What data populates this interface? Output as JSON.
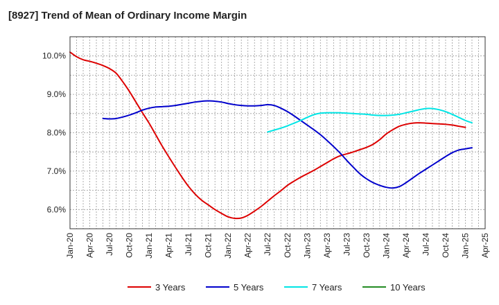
{
  "chart_data": {
    "type": "line",
    "title": "[8927]  Trend of Mean of Ordinary Income Margin",
    "xlabel": "",
    "ylabel": "",
    "x_ticks": [
      "Jan-20",
      "Apr-20",
      "Jul-20",
      "Oct-20",
      "Jan-21",
      "Apr-21",
      "Jul-21",
      "Oct-21",
      "Jan-22",
      "Apr-22",
      "Jul-22",
      "Oct-22",
      "Jan-23",
      "Apr-23",
      "Jul-23",
      "Oct-23",
      "Jan-24",
      "Apr-24",
      "Jul-24",
      "Oct-24",
      "Jan-25",
      "Apr-25"
    ],
    "y_ticks": [
      "6.0%",
      "7.0%",
      "8.0%",
      "9.0%",
      "10.0%"
    ],
    "y_tick_values": [
      6.0,
      7.0,
      8.0,
      9.0,
      10.0
    ],
    "ylim": [
      5.5,
      10.5
    ],
    "grid": true,
    "legend_position": "bottom",
    "series": [
      {
        "name": "3 Years",
        "color": "#dd0000",
        "points": [
          [
            "Jan-20",
            10.1
          ],
          [
            "Feb-20",
            9.98
          ],
          [
            "Mar-20",
            9.9
          ],
          [
            "Apr-20",
            9.86
          ],
          [
            "May-20",
            9.81
          ],
          [
            "Jun-20",
            9.75
          ],
          [
            "Jul-20",
            9.67
          ],
          [
            "Aug-20",
            9.55
          ],
          [
            "Sep-20",
            9.33
          ],
          [
            "Oct-20",
            9.08
          ],
          [
            "Nov-20",
            8.8
          ],
          [
            "Dec-20",
            8.52
          ],
          [
            "Jan-21",
            8.25
          ],
          [
            "Feb-21",
            7.95
          ],
          [
            "Mar-21",
            7.65
          ],
          [
            "Apr-21",
            7.37
          ],
          [
            "May-21",
            7.1
          ],
          [
            "Jun-21",
            6.84
          ],
          [
            "Jul-21",
            6.6
          ],
          [
            "Aug-21",
            6.4
          ],
          [
            "Sep-21",
            6.24
          ],
          [
            "Oct-21",
            6.12
          ],
          [
            "Nov-21",
            6.0
          ],
          [
            "Dec-21",
            5.9
          ],
          [
            "Jan-22",
            5.81
          ],
          [
            "Feb-22",
            5.77
          ],
          [
            "Mar-22",
            5.78
          ],
          [
            "Apr-22",
            5.85
          ],
          [
            "May-22",
            5.96
          ],
          [
            "Jun-22",
            6.08
          ],
          [
            "Jul-22",
            6.22
          ],
          [
            "Aug-22",
            6.36
          ],
          [
            "Sep-22",
            6.49
          ],
          [
            "Oct-22",
            6.63
          ],
          [
            "Nov-22",
            6.74
          ],
          [
            "Dec-22",
            6.84
          ],
          [
            "Jan-23",
            6.93
          ],
          [
            "Feb-23",
            7.02
          ],
          [
            "Mar-23",
            7.12
          ],
          [
            "Apr-23",
            7.22
          ],
          [
            "May-23",
            7.32
          ],
          [
            "Jun-23",
            7.4
          ],
          [
            "Jul-23",
            7.45
          ],
          [
            "Aug-23",
            7.5
          ],
          [
            "Sep-23",
            7.56
          ],
          [
            "Oct-23",
            7.62
          ],
          [
            "Nov-23",
            7.7
          ],
          [
            "Dec-23",
            7.82
          ],
          [
            "Jan-24",
            7.97
          ],
          [
            "Feb-24",
            8.08
          ],
          [
            "Mar-24",
            8.17
          ],
          [
            "Apr-24",
            8.22
          ],
          [
            "May-24",
            8.25
          ],
          [
            "Jun-24",
            8.26
          ],
          [
            "Jul-24",
            8.25
          ],
          [
            "Aug-24",
            8.24
          ],
          [
            "Sep-24",
            8.23
          ],
          [
            "Oct-24",
            8.22
          ],
          [
            "Nov-24",
            8.2
          ],
          [
            "Dec-24",
            8.17
          ],
          [
            "Jan-25",
            8.14
          ]
        ]
      },
      {
        "name": "5 Years",
        "color": "#0000cc",
        "points": [
          [
            "Jun-20",
            8.37
          ],
          [
            "Jul-20",
            8.36
          ],
          [
            "Aug-20",
            8.37
          ],
          [
            "Sep-20",
            8.41
          ],
          [
            "Oct-20",
            8.46
          ],
          [
            "Nov-20",
            8.52
          ],
          [
            "Dec-20",
            8.59
          ],
          [
            "Jan-21",
            8.64
          ],
          [
            "Feb-21",
            8.67
          ],
          [
            "Mar-21",
            8.68
          ],
          [
            "Apr-21",
            8.69
          ],
          [
            "May-21",
            8.71
          ],
          [
            "Jun-21",
            8.74
          ],
          [
            "Jul-21",
            8.77
          ],
          [
            "Aug-21",
            8.8
          ],
          [
            "Sep-21",
            8.82
          ],
          [
            "Oct-21",
            8.83
          ],
          [
            "Nov-21",
            8.82
          ],
          [
            "Dec-21",
            8.8
          ],
          [
            "Jan-22",
            8.76
          ],
          [
            "Feb-22",
            8.73
          ],
          [
            "Mar-22",
            8.71
          ],
          [
            "Apr-22",
            8.7
          ],
          [
            "May-22",
            8.7
          ],
          [
            "Jun-22",
            8.71
          ],
          [
            "Jul-22",
            8.73
          ],
          [
            "Aug-22",
            8.71
          ],
          [
            "Sep-22",
            8.64
          ],
          [
            "Oct-22",
            8.55
          ],
          [
            "Nov-22",
            8.44
          ],
          [
            "Dec-22",
            8.32
          ],
          [
            "Jan-23",
            8.2
          ],
          [
            "Feb-23",
            8.08
          ],
          [
            "Mar-23",
            7.95
          ],
          [
            "Apr-23",
            7.8
          ],
          [
            "May-23",
            7.64
          ],
          [
            "Jun-23",
            7.47
          ],
          [
            "Jul-23",
            7.28
          ],
          [
            "Aug-23",
            7.1
          ],
          [
            "Sep-23",
            6.93
          ],
          [
            "Oct-23",
            6.8
          ],
          [
            "Nov-23",
            6.7
          ],
          [
            "Dec-23",
            6.63
          ],
          [
            "Jan-24",
            6.58
          ],
          [
            "Feb-24",
            6.56
          ],
          [
            "Mar-24",
            6.6
          ],
          [
            "Apr-24",
            6.7
          ],
          [
            "May-24",
            6.82
          ],
          [
            "Jun-24",
            6.94
          ],
          [
            "Jul-24",
            7.05
          ],
          [
            "Aug-24",
            7.16
          ],
          [
            "Sep-24",
            7.27
          ],
          [
            "Oct-24",
            7.38
          ],
          [
            "Nov-24",
            7.48
          ],
          [
            "Dec-24",
            7.55
          ],
          [
            "Jan-25",
            7.58
          ],
          [
            "Feb-25",
            7.61
          ]
        ]
      },
      {
        "name": "7 Years",
        "color": "#00e5e5",
        "points": [
          [
            "Jul-22",
            8.02
          ],
          [
            "Aug-22",
            8.07
          ],
          [
            "Sep-22",
            8.12
          ],
          [
            "Oct-22",
            8.18
          ],
          [
            "Nov-22",
            8.25
          ],
          [
            "Dec-22",
            8.32
          ],
          [
            "Jan-23",
            8.4
          ],
          [
            "Feb-23",
            8.47
          ],
          [
            "Mar-23",
            8.51
          ],
          [
            "Apr-23",
            8.52
          ],
          [
            "May-23",
            8.52
          ],
          [
            "Jun-23",
            8.52
          ],
          [
            "Jul-23",
            8.51
          ],
          [
            "Aug-23",
            8.5
          ],
          [
            "Sep-23",
            8.49
          ],
          [
            "Oct-23",
            8.48
          ],
          [
            "Nov-23",
            8.46
          ],
          [
            "Dec-23",
            8.45
          ],
          [
            "Jan-24",
            8.45
          ],
          [
            "Feb-24",
            8.46
          ],
          [
            "Mar-24",
            8.48
          ],
          [
            "Apr-24",
            8.52
          ],
          [
            "May-24",
            8.56
          ],
          [
            "Jun-24",
            8.6
          ],
          [
            "Jul-24",
            8.63
          ],
          [
            "Aug-24",
            8.63
          ],
          [
            "Sep-24",
            8.6
          ],
          [
            "Oct-24",
            8.55
          ],
          [
            "Nov-24",
            8.48
          ],
          [
            "Dec-24",
            8.4
          ],
          [
            "Jan-25",
            8.32
          ],
          [
            "Feb-25",
            8.26
          ]
        ]
      },
      {
        "name": "10 Years",
        "color": "#228b22",
        "points": []
      }
    ]
  }
}
